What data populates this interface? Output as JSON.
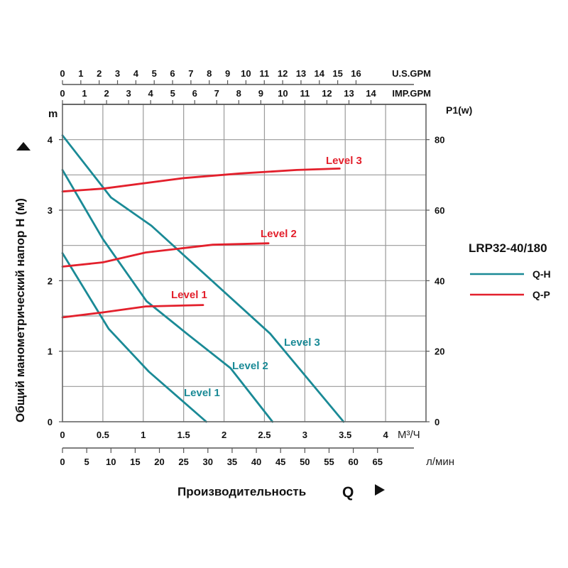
{
  "chart_data": {
    "type": "line",
    "title": "LRP32-40/180",
    "xlabel": "Производительность",
    "xlabel_symbol": "Q",
    "ylabel": "Общий манометрический напор H (м)",
    "ylabel_unit": "m",
    "y2label": "P1(w)",
    "x_unit": "М³/Ч",
    "xlim": [
      0,
      4.5
    ],
    "ylim": [
      0,
      4.5
    ],
    "y2lim": [
      0,
      90
    ],
    "grid": true,
    "legend_position": "right",
    "x_ticks": [
      "0",
      "0.5",
      "1",
      "1.5",
      "2",
      "2.5",
      "3",
      "3.5",
      "4"
    ],
    "x_tick_values": [
      0,
      0.5,
      1,
      1.5,
      2,
      2.5,
      3,
      3.5,
      4
    ],
    "y_ticks": [
      "0",
      "1",
      "2",
      "3",
      "4"
    ],
    "y_tick_values": [
      0,
      1,
      2,
      3,
      4
    ],
    "y2_ticks": [
      "0",
      "20",
      "40",
      "60",
      "80"
    ],
    "y2_tick_values": [
      0,
      20,
      40,
      60,
      80
    ],
    "secondary_axes": [
      {
        "name": "U.S.GPM",
        "label": "U.S.GPM",
        "ticks": [
          "0",
          "1",
          "2",
          "3",
          "4",
          "5",
          "6",
          "7",
          "8",
          "9",
          "10",
          "11",
          "12",
          "13",
          "14",
          "15",
          "16"
        ],
        "per_m3h": 4.403
      },
      {
        "name": "IMP.GPM",
        "label": "IMP.GPM",
        "ticks": [
          "0",
          "1",
          "2",
          "3",
          "4",
          "5",
          "6",
          "7",
          "8",
          "9",
          "10",
          "11",
          "12",
          "13",
          "14"
        ],
        "per_m3h": 3.666
      },
      {
        "name": "l/min",
        "label": "л/мин",
        "ticks": [
          "0",
          "5",
          "10",
          "15",
          "20",
          "25",
          "30",
          "35",
          "40",
          "45",
          "50",
          "55",
          "60",
          "65"
        ],
        "per_m3h": 16.667
      }
    ],
    "legend": [
      {
        "label": "Q-H",
        "color": "#1a8a96"
      },
      {
        "label": "Q-P",
        "color": "#e3202c"
      }
    ],
    "series": [
      {
        "name": "Q-H Level 3",
        "label": "Level 3",
        "kind": "Q-H",
        "axis": "left",
        "color": "#1a8a96",
        "points": [
          [
            0,
            4.06
          ],
          [
            0.6,
            3.18
          ],
          [
            1.1,
            2.78
          ],
          [
            2.57,
            1.25
          ],
          [
            3.48,
            0
          ]
        ]
      },
      {
        "name": "Q-H Level 2",
        "label": "Level 2",
        "kind": "Q-H",
        "axis": "left",
        "color": "#1a8a96",
        "points": [
          [
            0,
            3.57
          ],
          [
            0.5,
            2.59
          ],
          [
            1.04,
            1.71
          ],
          [
            1.56,
            1.23
          ],
          [
            2.08,
            0.76
          ],
          [
            2.6,
            0
          ]
        ]
      },
      {
        "name": "Q-H Level 1",
        "label": "Level 1",
        "kind": "Q-H",
        "axis": "left",
        "color": "#1a8a96",
        "points": [
          [
            0,
            2.39
          ],
          [
            0.57,
            1.32
          ],
          [
            1.07,
            0.71
          ],
          [
            1.78,
            0
          ]
        ]
      },
      {
        "name": "Q-P Level 3",
        "label": "Level 3",
        "kind": "Q-P",
        "axis": "right",
        "color": "#e3202c",
        "points": [
          [
            0,
            65.3
          ],
          [
            0.5,
            66.1
          ],
          [
            1.5,
            69.1
          ],
          [
            2.2,
            70.4
          ],
          [
            2.9,
            71.4
          ],
          [
            3.43,
            71.8
          ]
        ]
      },
      {
        "name": "Q-P Level 2",
        "label": "Level 2",
        "kind": "Q-P",
        "axis": "right",
        "color": "#e3202c",
        "points": [
          [
            0,
            44
          ],
          [
            0.5,
            45.2
          ],
          [
            1.03,
            48
          ],
          [
            1.86,
            50.2
          ],
          [
            2.55,
            50.6
          ]
        ]
      },
      {
        "name": "Q-P Level 1",
        "label": "Level 1",
        "kind": "Q-P",
        "axis": "right",
        "color": "#e3202c",
        "points": [
          [
            0,
            29.6
          ],
          [
            0.5,
            31
          ],
          [
            1.03,
            32.7
          ],
          [
            1.74,
            33.1
          ]
        ]
      }
    ]
  }
}
